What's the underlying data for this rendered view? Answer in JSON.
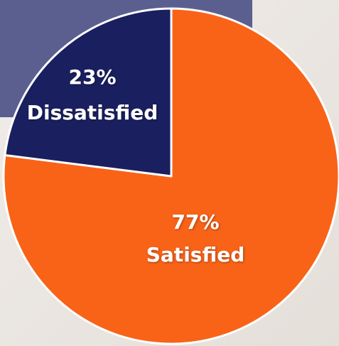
{
  "chart_data": {
    "type": "pie",
    "categories": [
      "Satisfied",
      "Dissatisfied"
    ],
    "values": [
      77,
      23
    ],
    "value_labels": [
      "77%",
      "23%"
    ],
    "colors": [
      "#f96318",
      "#1a1f60"
    ]
  }
}
